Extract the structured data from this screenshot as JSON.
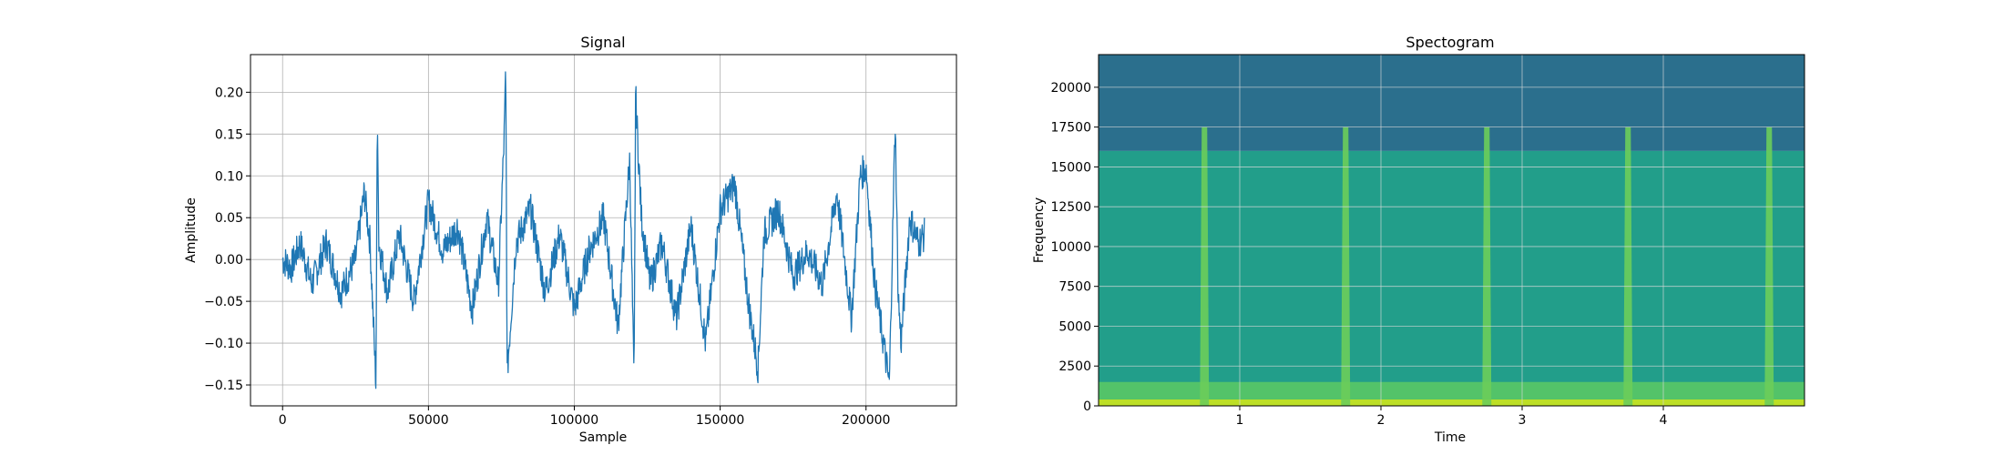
{
  "chart_data": [
    {
      "type": "line",
      "title": "Signal",
      "xlabel": "Sample",
      "ylabel": "Amplitude",
      "xlim": [
        -11000,
        231000
      ],
      "ylim": [
        -0.175,
        0.245
      ],
      "xticks": [
        0,
        50000,
        100000,
        150000,
        200000
      ],
      "xtick_labels": [
        "0",
        "50000",
        "100000",
        "150000",
        "200000"
      ],
      "yticks": [
        -0.15,
        -0.1,
        -0.05,
        0.0,
        0.05,
        0.1,
        0.15,
        0.2
      ],
      "ytick_labels": [
        "−0.15",
        "−0.10",
        "−0.05",
        "0.00",
        "0.05",
        "0.10",
        "0.15",
        "0.20"
      ],
      "grid": true,
      "color": "#1f77b4",
      "series": [
        {
          "x": [
            0,
            3000,
            6000,
            10000,
            15000,
            20000,
            25000,
            28000,
            30000,
            32000,
            32500,
            33000,
            36000,
            40000,
            45000,
            50000,
            55000,
            60000,
            65000,
            70000,
            74000,
            76000,
            76500,
            77000,
            80000,
            85000,
            90000,
            95000,
            100000,
            105000,
            110000,
            115000,
            119000,
            120500,
            121000,
            123000,
            126000,
            130000,
            135000,
            140000,
            145000,
            150000,
            155000,
            160000,
            163000,
            165000,
            170000,
            175000,
            180000,
            185000,
            190000,
            195000,
            198000,
            200000,
            203000,
            206000,
            208000,
            210000,
            211000,
            212000,
            215000,
            218000,
            220000
          ],
          "y": [
            0.0,
            -0.01,
            0.02,
            -0.03,
            0.02,
            -0.04,
            0.0,
            0.08,
            0.02,
            -0.15,
            0.185,
            0.02,
            -0.04,
            0.03,
            -0.05,
            0.07,
            0.01,
            0.04,
            -0.06,
            0.05,
            -0.03,
            0.15,
            0.228,
            -0.135,
            0.02,
            0.06,
            -0.04,
            0.03,
            -0.06,
            0.01,
            0.05,
            -0.08,
            0.12,
            -0.155,
            0.198,
            0.05,
            -0.03,
            0.02,
            -0.07,
            0.04,
            -0.1,
            0.06,
            0.09,
            -0.06,
            -0.13,
            0.03,
            0.06,
            -0.02,
            0.01,
            -0.03,
            0.08,
            -0.07,
            0.1,
            0.11,
            -0.03,
            -0.1,
            -0.15,
            0.168,
            -0.04,
            -0.1,
            0.05,
            0.02,
            0.03
          ]
        }
      ]
    },
    {
      "type": "heatmap",
      "title": "Spectogram",
      "xlabel": "Time",
      "ylabel": "Frequency",
      "xlim": [
        0,
        5
      ],
      "ylim": [
        0,
        22050
      ],
      "xticks": [
        1,
        2,
        3,
        4
      ],
      "xtick_labels": [
        "1",
        "2",
        "3",
        "4"
      ],
      "yticks": [
        0,
        2500,
        5000,
        7500,
        10000,
        12500,
        15000,
        17500,
        20000
      ],
      "ytick_labels": [
        "0",
        "2500",
        "5000",
        "7500",
        "10000",
        "12500",
        "15000",
        "17500",
        "20000"
      ],
      "grid": true,
      "colormap": "viridis",
      "band_cutoff_frequency": 16000,
      "transient_times": [
        0.75,
        1.75,
        2.75,
        3.75,
        4.75
      ],
      "colors": {
        "above_cutoff": "#2b6f8d",
        "below_cutoff": "#229e8a",
        "low_band": "#5cc963",
        "floor": "#bddf26",
        "transient": "#6ccd5a"
      }
    }
  ]
}
